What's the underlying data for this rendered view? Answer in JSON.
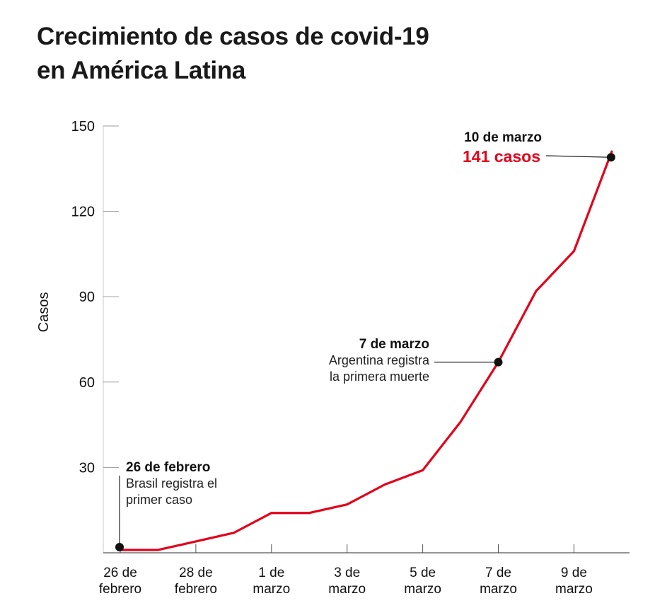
{
  "title_lines": [
    "Crecimiento de casos de covid-19",
    "en América Latina"
  ],
  "chart_data": {
    "type": "line",
    "title": "Crecimiento de casos de covid-19 en América Latina",
    "ylabel": "Casos",
    "xlabel": "",
    "ylim": [
      0,
      150
    ],
    "yticks": [
      30,
      60,
      90,
      120,
      150
    ],
    "x_tick_labels": [
      [
        "26 de",
        "febrero"
      ],
      [
        "28 de",
        "febrero"
      ],
      [
        "1 de",
        "marzo"
      ],
      [
        "3 de",
        "marzo"
      ],
      [
        "5 de",
        "marzo"
      ],
      [
        "7 de",
        "marzo"
      ],
      [
        "9 de",
        "marzo"
      ]
    ],
    "x": [
      "26 feb",
      "27 feb",
      "28 feb",
      "29 feb",
      "1 mar",
      "2 mar",
      "3 mar",
      "4 mar",
      "5 mar",
      "6 mar",
      "7 mar",
      "8 mar",
      "9 mar",
      "10 mar"
    ],
    "series": [
      {
        "values": [
          1,
          1,
          4,
          7,
          14,
          14,
          17,
          24,
          29,
          46,
          67,
          92,
          106,
          141
        ],
        "color": "#e3001b"
      }
    ],
    "annotations": [
      {
        "index": 0,
        "value": 2,
        "lines": [
          "26 de febrero",
          "Brasil registra el",
          "primer caso"
        ]
      },
      {
        "index": 10,
        "value": 67,
        "lines": [
          "7 de marzo",
          "Argentina registra",
          "la primera muerte"
        ]
      },
      {
        "index": 13,
        "value": 139,
        "lines": [
          "10 de marzo",
          "141 casos"
        ]
      }
    ]
  }
}
